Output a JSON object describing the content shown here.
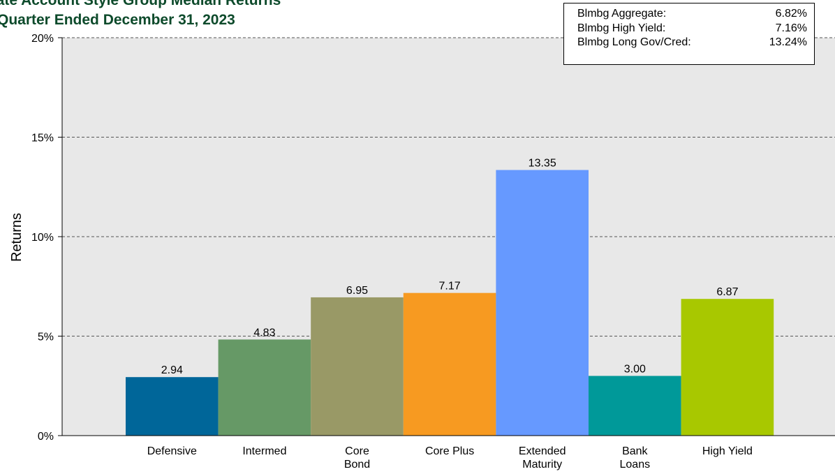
{
  "chart_data": {
    "type": "bar",
    "title": [
      "parate Account Style Group Median Returns",
      "Quarter Ended December 31, 2023"
    ],
    "ylabel": "Returns",
    "xlabel": "",
    "ylim": [
      0,
      20
    ],
    "yticks": [
      "0%",
      "5%",
      "10%",
      "15%",
      "20%"
    ],
    "yticks_values": [
      0,
      5,
      10,
      15,
      20
    ],
    "categories": [
      [
        "Defensive"
      ],
      [
        "Intermed"
      ],
      [
        "Core",
        "Bond"
      ],
      [
        "Core Plus"
      ],
      [
        "Extended",
        "Maturity"
      ],
      [
        "Bank",
        "Loans"
      ],
      [
        "High Yield"
      ]
    ],
    "values": [
      2.94,
      4.83,
      6.95,
      7.17,
      13.35,
      3.0,
      6.87
    ],
    "value_labels": [
      "2.94",
      "4.83",
      "6.95",
      "7.17",
      "13.35",
      "3.00",
      "6.87"
    ],
    "colors": [
      "#006699",
      "#669966",
      "#999966",
      "#f79a21",
      "#6699ff",
      "#009999",
      "#a8c800"
    ],
    "grid": "horizontal dashed",
    "plot_background": "#e8e8e8",
    "benchmarks": [
      {
        "name": "Blmbg Aggregate:",
        "value": "6.82%"
      },
      {
        "name": "Blmbg High Yield:",
        "value": "7.16%"
      },
      {
        "name": "Blmbg Long Gov/Cred:",
        "value": "13.24%"
      }
    ]
  }
}
